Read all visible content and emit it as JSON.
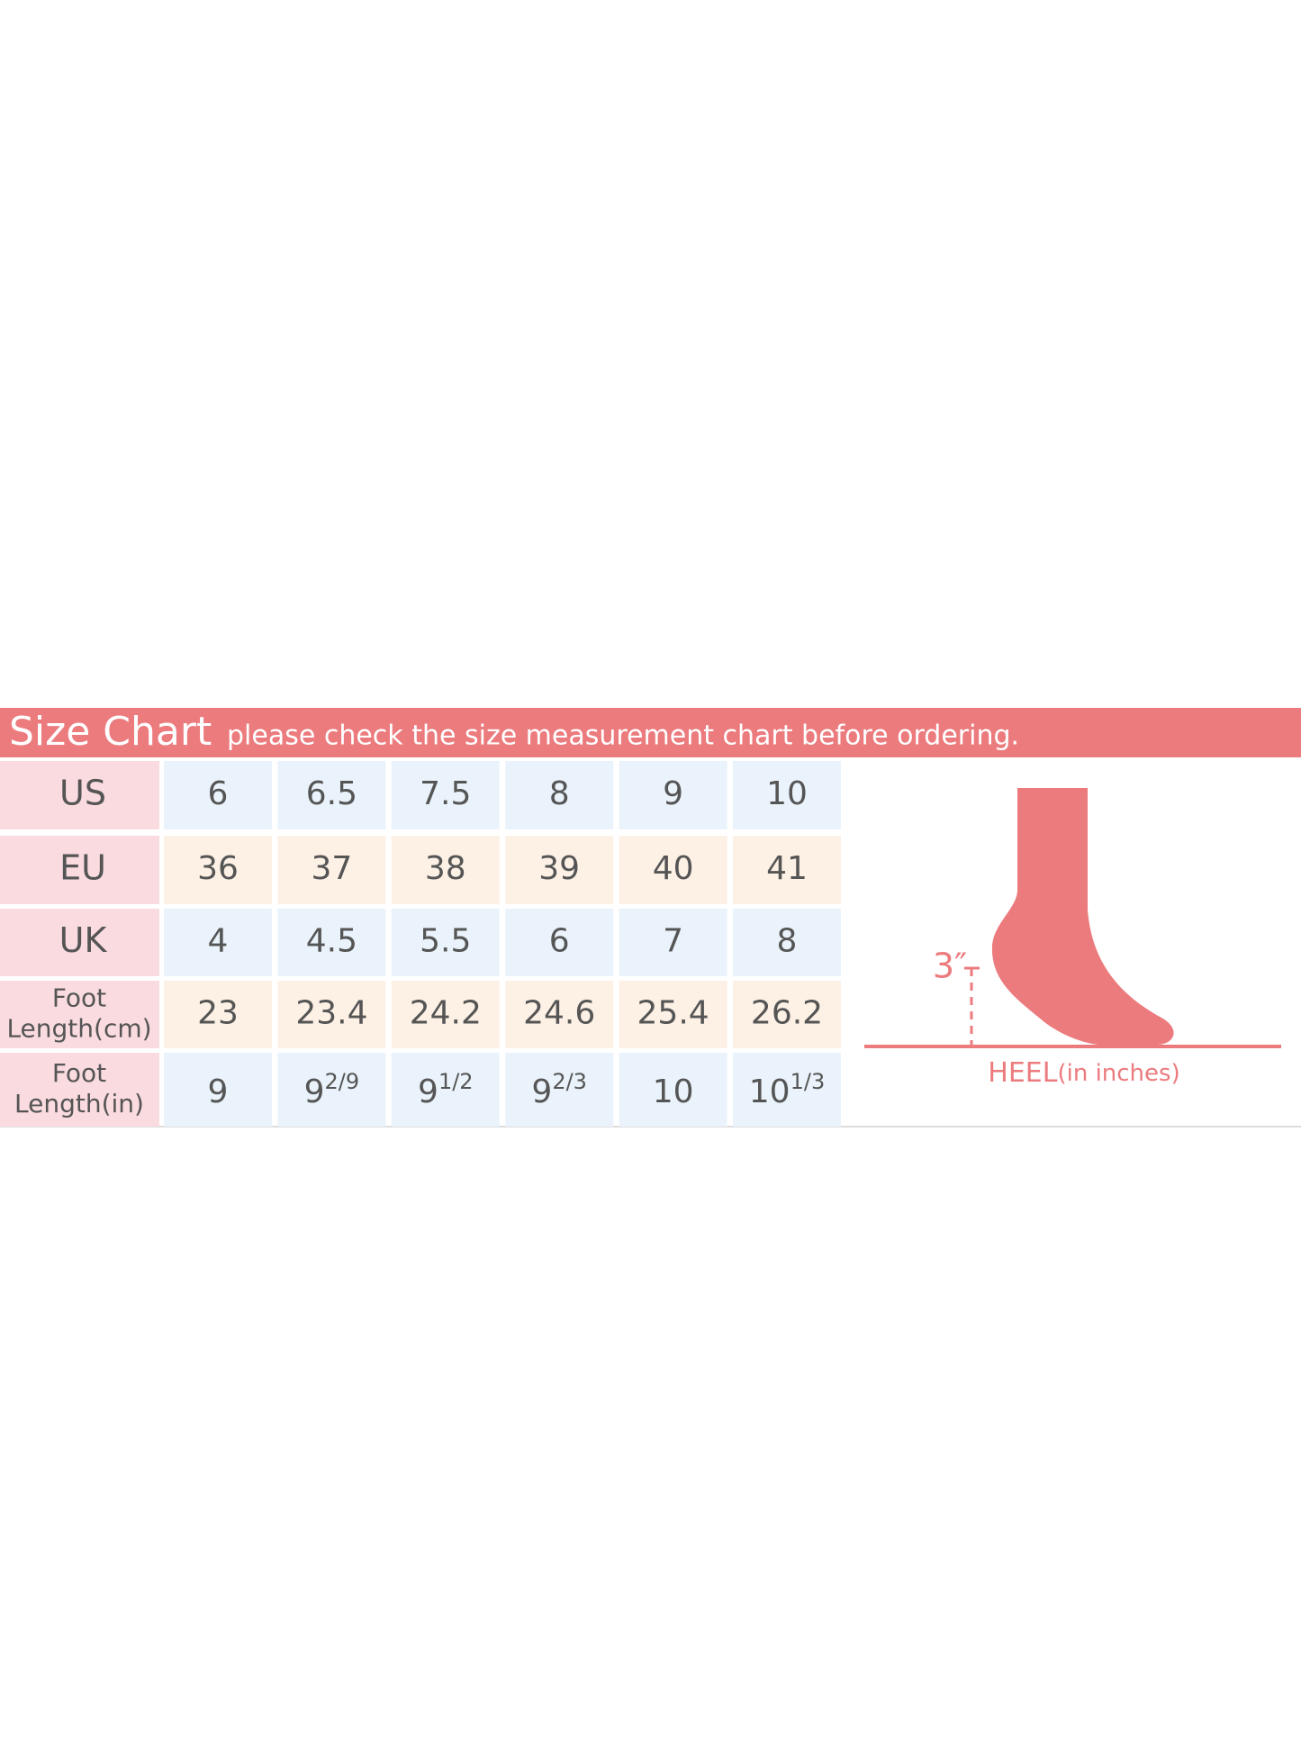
{
  "header": {
    "title": "Size Chart",
    "subtitle": "please check the size measurement chart before ordering."
  },
  "table": {
    "rows": [
      {
        "label": [
          "US"
        ],
        "cells": [
          "6",
          "6.5",
          "7.5",
          "8",
          "9",
          "10"
        ]
      },
      {
        "label": [
          "EU"
        ],
        "cells": [
          "36",
          "37",
          "38",
          "39",
          "40",
          "41"
        ]
      },
      {
        "label": [
          "UK"
        ],
        "cells": [
          "4",
          "4.5",
          "5.5",
          "6",
          "7",
          "8"
        ]
      },
      {
        "label": [
          "Foot",
          "Length(cm)"
        ],
        "cells": [
          "23",
          "23.4",
          "24.2",
          "24.6",
          "25.4",
          "26.2"
        ]
      },
      {
        "label": [
          "Foot",
          "Length(in)"
        ],
        "cells": [
          "9",
          {
            "base": "9",
            "sup": "2/9"
          },
          {
            "base": "9",
            "sup": "1/2"
          },
          {
            "base": "9",
            "sup": "2/3"
          },
          "10",
          {
            "base": "10",
            "sup": "1/3"
          }
        ]
      }
    ]
  },
  "diagram": {
    "heel_height": "3″",
    "caption": "HEEL",
    "caption_unit": "(in inches)"
  }
}
